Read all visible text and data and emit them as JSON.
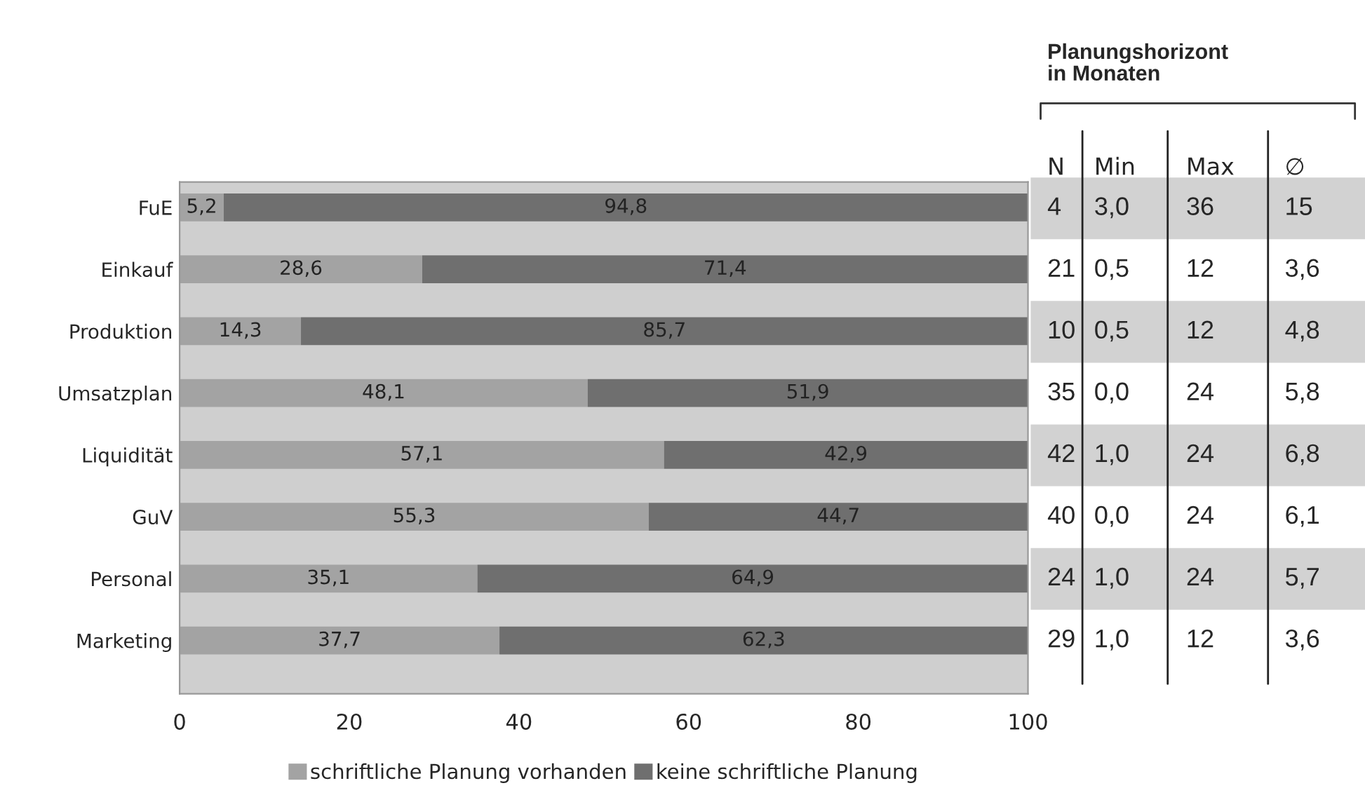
{
  "chart_data": [
    {
      "type": "bar",
      "orientation": "horizontal",
      "stacked": true,
      "categories": [
        "FuE",
        "Einkauf",
        "Produktion",
        "Umsatzplan",
        "Liquidität",
        "GuV",
        "Personal",
        "Marketing"
      ],
      "series": [
        {
          "name": "schriftliche Planung vorhanden",
          "color": "#a3a3a3",
          "values": [
            5.2,
            28.6,
            14.3,
            48.1,
            57.1,
            55.3,
            35.1,
            37.7
          ],
          "value_labels": [
            "5,2",
            "28,6",
            "14,3",
            "48,1",
            "57,1",
            "55,3",
            "35,1",
            "37,7"
          ]
        },
        {
          "name": "keine schriftliche Planung",
          "color": "#6f6f6f",
          "values": [
            94.8,
            71.4,
            85.7,
            51.9,
            42.9,
            44.7,
            64.9,
            62.3
          ],
          "value_labels": [
            "94,8",
            "71,4",
            "85,7",
            "51,9",
            "42,9",
            "44,7",
            "64,9",
            "62,3"
          ]
        }
      ],
      "xlim": [
        0,
        100
      ],
      "xticks": [
        0,
        20,
        40,
        60,
        80,
        100
      ],
      "legend": "bottom"
    },
    {
      "type": "other",
      "title": "Planungshorizont\nin Monaten",
      "categories": [
        "N",
        "Min",
        "Max",
        "∅"
      ],
      "cell_labels": [
        [
          "4",
          "3,0",
          "36",
          "15"
        ],
        [
          "21",
          "0,5",
          "12",
          "3,6"
        ],
        [
          "10",
          "0,5",
          "12",
          "4,8"
        ],
        [
          "35",
          "0,0",
          "24",
          "5,8"
        ],
        [
          "42",
          "1,0",
          "24",
          "6,8"
        ],
        [
          "40",
          "0,0",
          "24",
          "6,1"
        ],
        [
          "24",
          "1,0",
          "24",
          "5,7"
        ],
        [
          "29",
          "1,0",
          "12",
          "3,6"
        ]
      ]
    }
  ]
}
